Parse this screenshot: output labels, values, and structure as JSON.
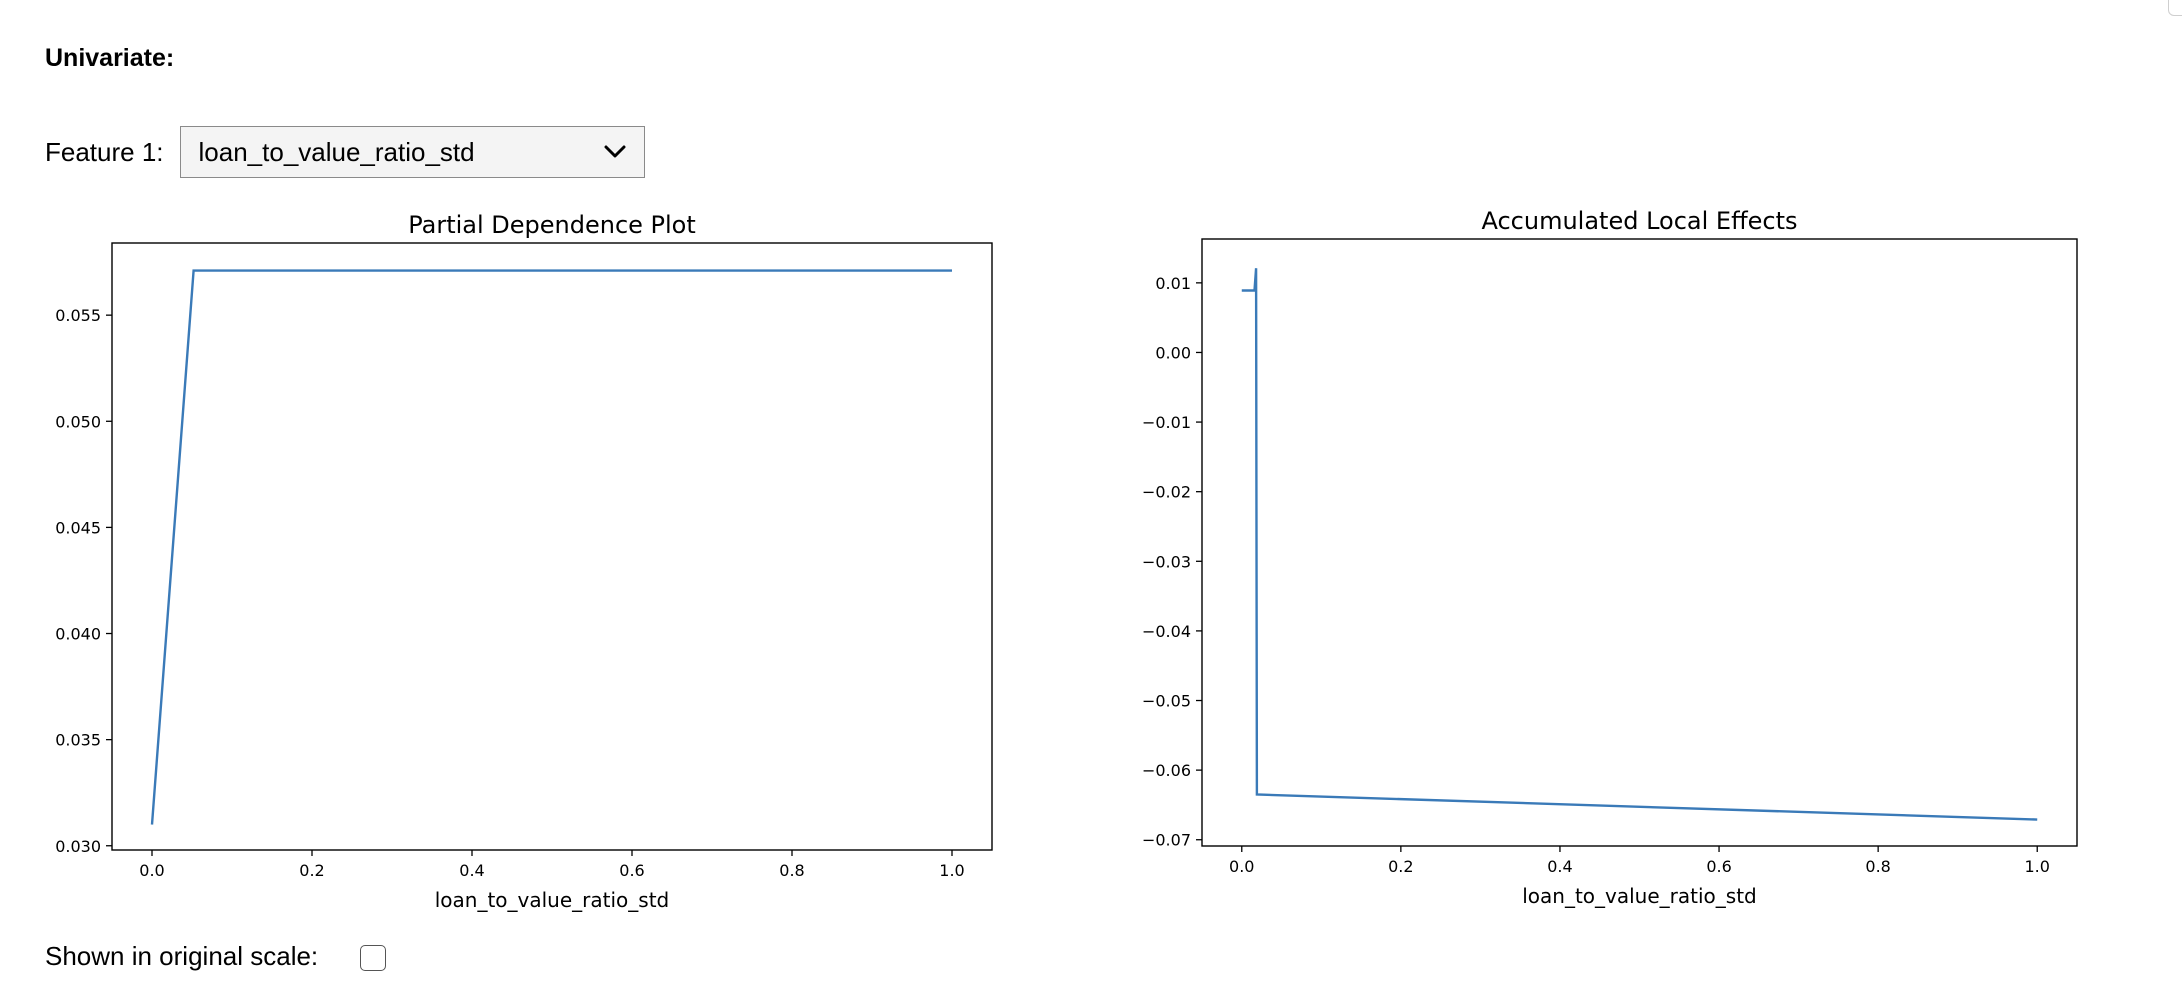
{
  "header": {
    "section_title": "Univariate:"
  },
  "feature_selector": {
    "label": "Feature 1:",
    "selected": "loan_to_value_ratio_std",
    "icon": "chevron-down-icon"
  },
  "options": {
    "original_scale_label": "Shown in original scale:",
    "original_scale_checked": false
  },
  "colors": {
    "line": "#3a7ab8",
    "axis": "#000000"
  },
  "chart_data": [
    {
      "type": "line",
      "title": "Partial Dependence Plot",
      "xlabel": "loan_to_value_ratio_std",
      "ylabel": "",
      "xlim": [
        -0.05,
        1.05
      ],
      "ylim": [
        0.0298,
        0.0584
      ],
      "xticks": [
        0.0,
        0.2,
        0.4,
        0.6,
        0.8,
        1.0
      ],
      "xtick_labels": [
        "0.0",
        "0.2",
        "0.4",
        "0.6",
        "0.8",
        "1.0"
      ],
      "yticks": [
        0.03,
        0.035,
        0.04,
        0.045,
        0.05,
        0.055
      ],
      "ytick_labels": [
        "0.030",
        "0.035",
        "0.040",
        "0.045",
        "0.050",
        "0.055"
      ],
      "grid": false,
      "series": [
        {
          "x": [
            0.0,
            0.052,
            1.0
          ],
          "y": [
            0.031,
            0.0571,
            0.0571
          ]
        }
      ]
    },
    {
      "type": "line",
      "title": "Accumulated Local Effects",
      "xlabel": "loan_to_value_ratio_std",
      "ylabel": "",
      "xlim": [
        -0.05,
        1.05
      ],
      "ylim": [
        -0.0709,
        0.0163
      ],
      "xticks": [
        0.0,
        0.2,
        0.4,
        0.6,
        0.8,
        1.0
      ],
      "xtick_labels": [
        "0.0",
        "0.2",
        "0.4",
        "0.6",
        "0.8",
        "1.0"
      ],
      "yticks": [
        0.01,
        0.0,
        -0.01,
        -0.02,
        -0.03,
        -0.04,
        -0.05,
        -0.06,
        -0.07
      ],
      "ytick_labels": [
        "0.01",
        "0.00",
        "−0.01",
        "−0.02",
        "−0.03",
        "−0.04",
        "−0.05",
        "−0.06",
        "−0.07"
      ],
      "grid": false,
      "series": [
        {
          "x": [
            0.0,
            0.016,
            0.016,
            0.018,
            0.018,
            0.019,
            0.019,
            1.0
          ],
          "y": [
            0.0089,
            0.0089,
            0.0089,
            0.0121,
            0.0121,
            -0.0635,
            -0.0635,
            -0.0671
          ]
        }
      ]
    }
  ]
}
